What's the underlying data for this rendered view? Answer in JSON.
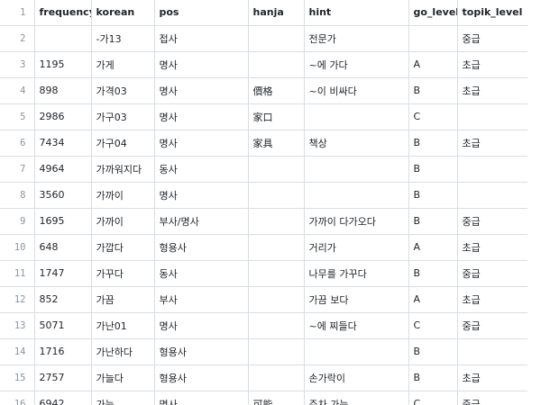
{
  "table": {
    "columns": [
      "frequency",
      "korean",
      "pos",
      "hanja",
      "hint",
      "go_level",
      "topik_level"
    ],
    "rows": [
      {
        "line": "2",
        "cells": [
          "",
          "-가13",
          "접사",
          "",
          "전문가",
          "",
          "중급"
        ]
      },
      {
        "line": "3",
        "cells": [
          "1195",
          "가게",
          "명사",
          "",
          "~에 가다",
          "A",
          "초급"
        ]
      },
      {
        "line": "4",
        "cells": [
          "898",
          "가격03",
          "명사",
          "價格",
          "~이 비싸다",
          "B",
          "초급"
        ]
      },
      {
        "line": "5",
        "cells": [
          "2986",
          "가구03",
          "명사",
          "家口",
          "",
          "C",
          ""
        ]
      },
      {
        "line": "6",
        "cells": [
          "7434",
          "가구04",
          "명사",
          "家具",
          "책상",
          "B",
          "초급"
        ]
      },
      {
        "line": "7",
        "cells": [
          "4964",
          "가까워지다",
          "동사",
          "",
          "",
          "B",
          ""
        ]
      },
      {
        "line": "8",
        "cells": [
          "3560",
          "가까이",
          "명사",
          "",
          "",
          "B",
          ""
        ]
      },
      {
        "line": "9",
        "cells": [
          "1695",
          "가까이",
          "부사/명사",
          "",
          "가까이 다가오다",
          "B",
          "중급"
        ]
      },
      {
        "line": "10",
        "cells": [
          "648",
          "가깝다",
          "형용사",
          "",
          "거리가",
          "A",
          "초급"
        ]
      },
      {
        "line": "11",
        "cells": [
          "1747",
          "가꾸다",
          "동사",
          "",
          "나무를 가꾸다",
          "B",
          "중급"
        ]
      },
      {
        "line": "12",
        "cells": [
          "852",
          "가끔",
          "부사",
          "",
          "가끔 보다",
          "A",
          "초급"
        ]
      },
      {
        "line": "13",
        "cells": [
          "5071",
          "가난01",
          "명사",
          "",
          "~에 찌들다",
          "C",
          "중급"
        ]
      },
      {
        "line": "14",
        "cells": [
          "1716",
          "가난하다",
          "형용사",
          "",
          "",
          "B",
          ""
        ]
      },
      {
        "line": "15",
        "cells": [
          "2757",
          "가늘다",
          "형용사",
          "",
          "손가락이",
          "B",
          "초급"
        ]
      },
      {
        "line": "16",
        "cells": [
          "6942",
          "가능",
          "명사",
          "可能",
          "주차 가능",
          "C",
          "중급"
        ]
      }
    ]
  },
  "header_line": "1"
}
